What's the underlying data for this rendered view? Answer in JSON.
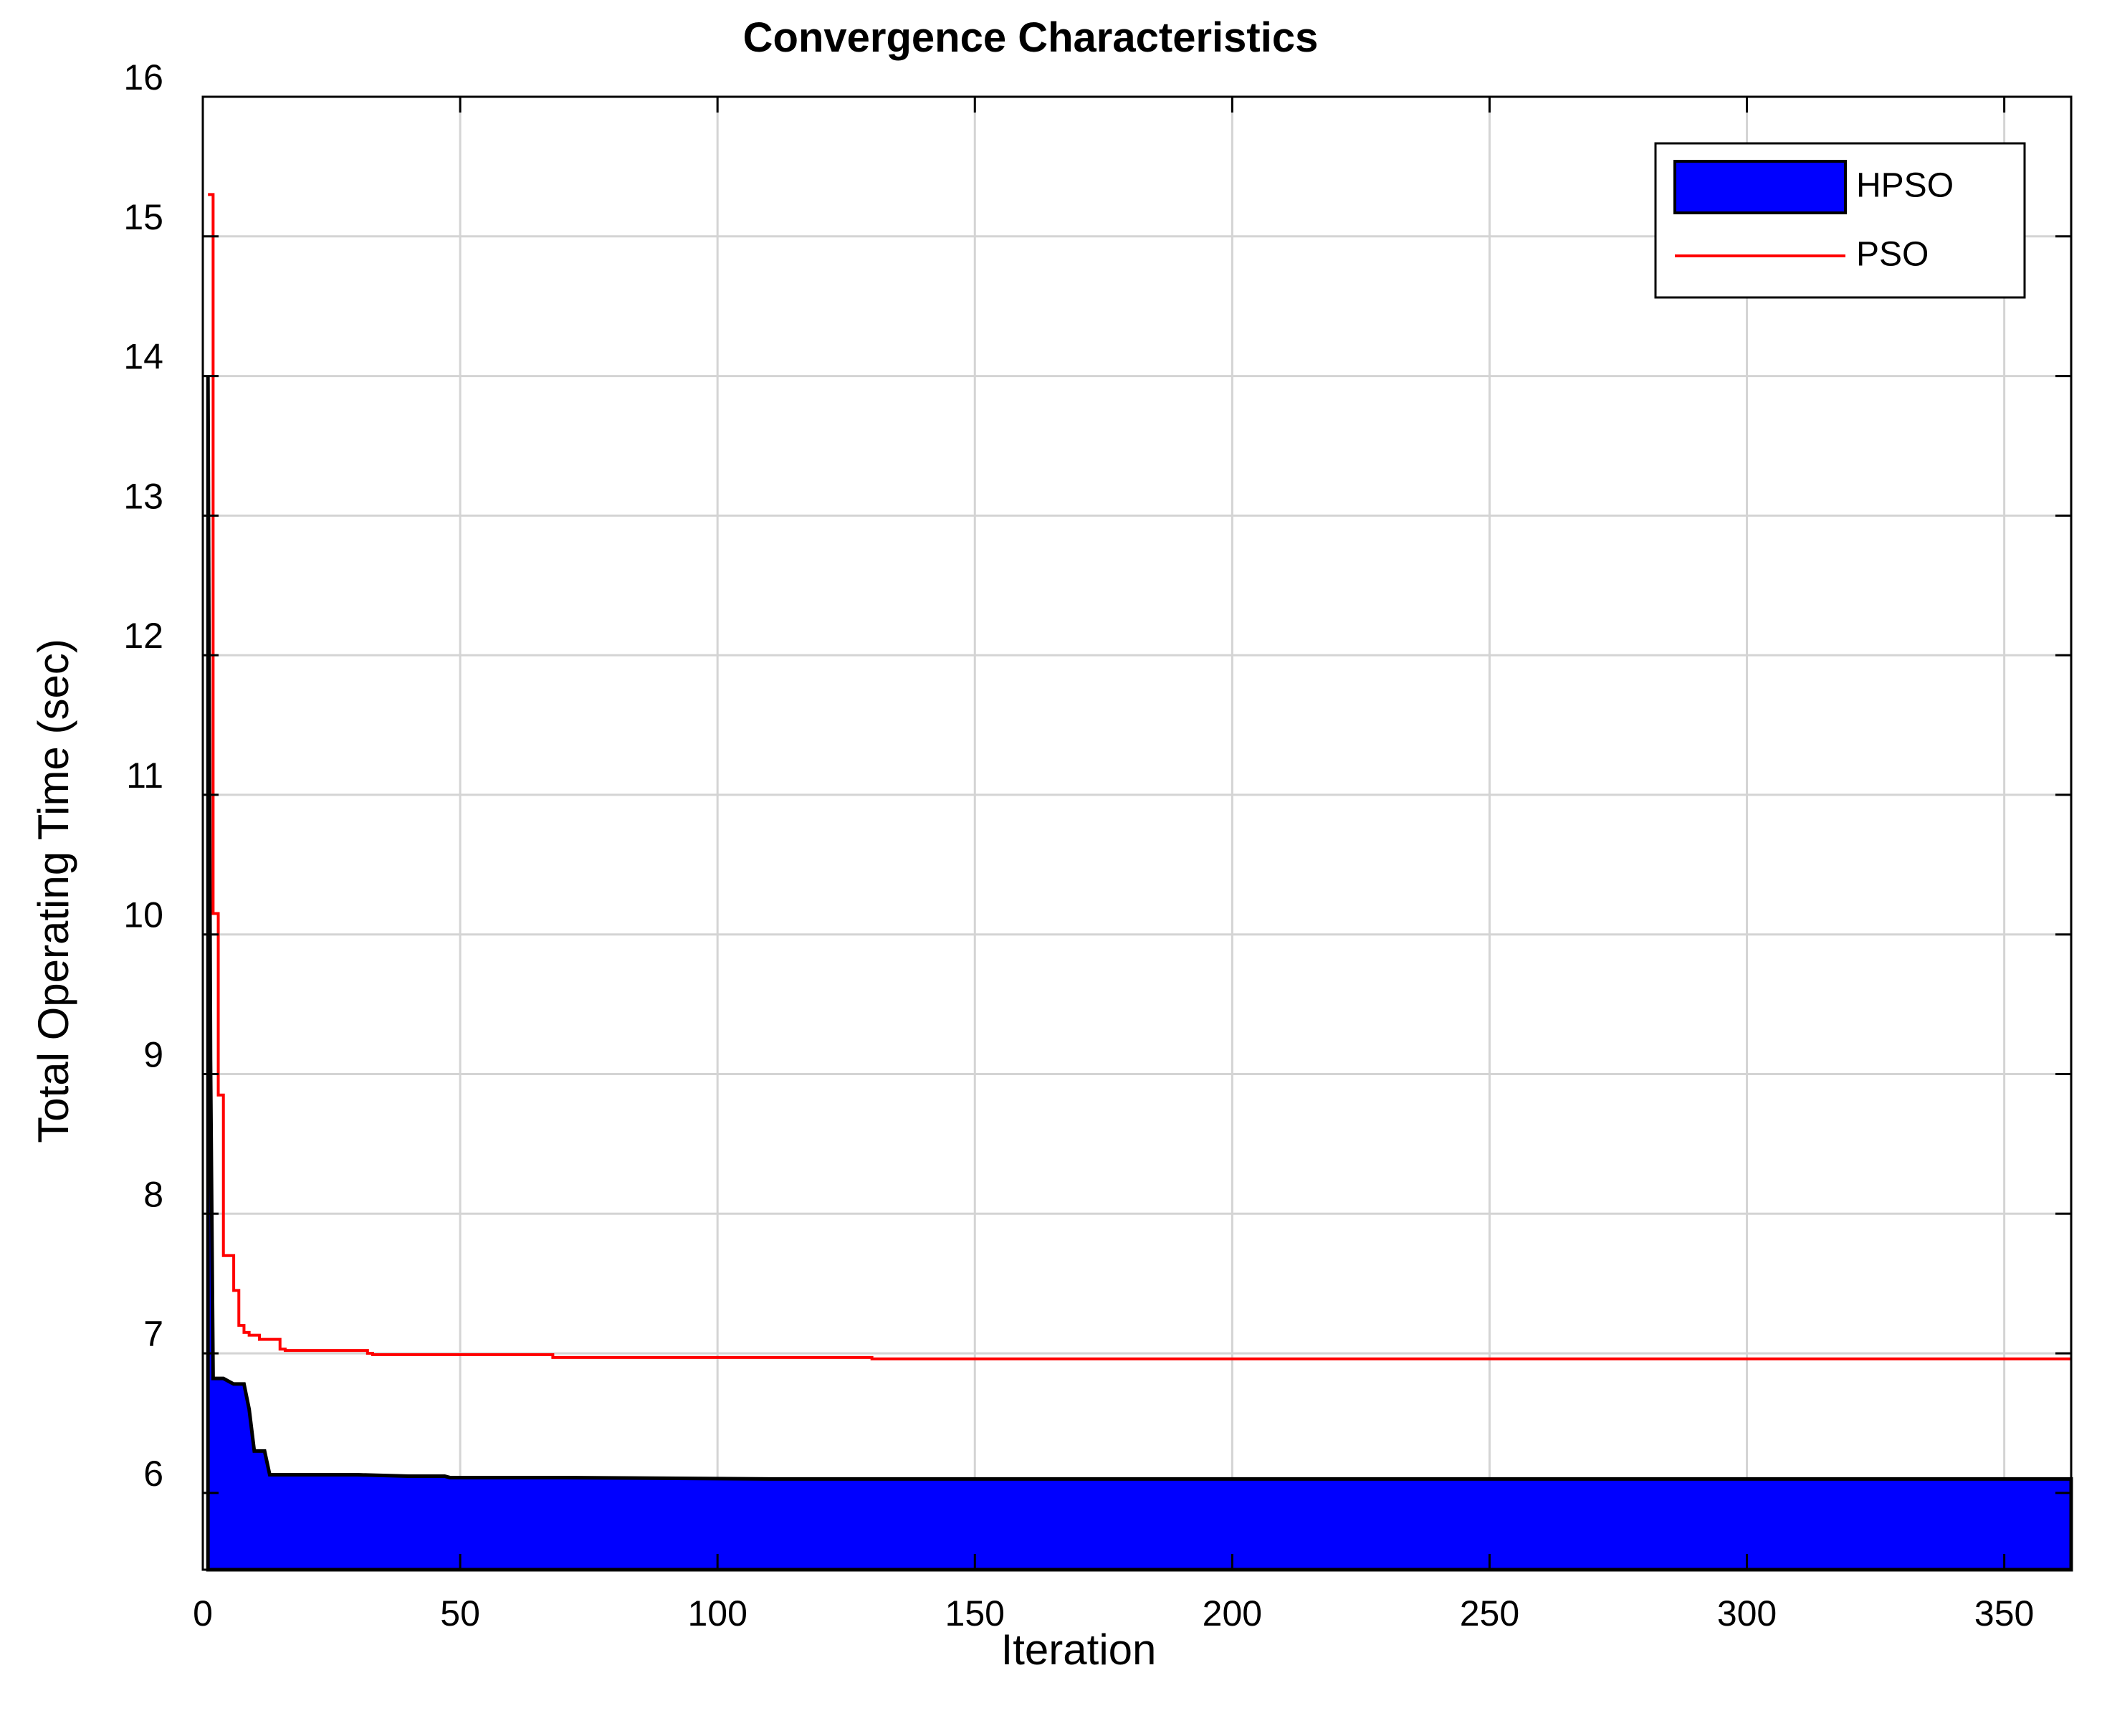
{
  "chart_data": {
    "type": "area",
    "title": "Convergence Characteristics",
    "xlabel": "Iteration",
    "ylabel": "Total Operating Time (sec)",
    "xlim": [
      0,
      363
    ],
    "ylim": [
      5.45,
      16
    ],
    "xticks": [
      0,
      50,
      100,
      150,
      200,
      250,
      300,
      350
    ],
    "yticks": [
      6,
      7,
      8,
      9,
      10,
      11,
      12,
      13,
      14,
      15,
      16
    ],
    "grid": true,
    "legend_position": "top-right",
    "series": [
      {
        "name": "HPSO",
        "kind": "filled-area",
        "fill_color": "#0000ff",
        "edge_color": "#000000",
        "x": [
          1,
          1,
          1.5,
          2,
          3,
          4,
          5,
          6,
          7,
          8,
          9,
          10,
          11,
          12,
          13,
          14,
          15,
          20,
          30,
          40,
          47,
          48,
          60,
          70,
          110,
          200,
          300,
          363
        ],
        "y": [
          5.45,
          14.0,
          9.1,
          6.82,
          6.82,
          6.82,
          6.8,
          6.78,
          6.78,
          6.78,
          6.6,
          6.3,
          6.3,
          6.3,
          6.13,
          6.13,
          6.13,
          6.13,
          6.13,
          6.12,
          6.12,
          6.11,
          6.11,
          6.11,
          6.1,
          6.1,
          6.1,
          6.1
        ]
      },
      {
        "name": "PSO",
        "kind": "step-line",
        "color": "#ff0000",
        "x": [
          1,
          2,
          3,
          4,
          5,
          6,
          7,
          8,
          9,
          10,
          11,
          12,
          13,
          14,
          15,
          16,
          20,
          32,
          33,
          67,
          68,
          130,
          363
        ],
        "y": [
          15.3,
          10.15,
          8.85,
          7.7,
          7.7,
          7.45,
          7.2,
          7.15,
          7.13,
          7.13,
          7.1,
          7.1,
          7.1,
          7.1,
          7.03,
          7.02,
          7.02,
          7.0,
          6.99,
          6.99,
          6.97,
          6.96,
          6.96
        ]
      }
    ]
  }
}
